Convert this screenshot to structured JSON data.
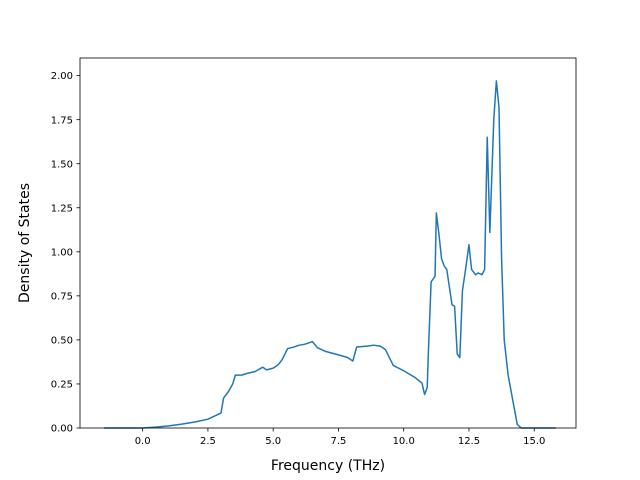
{
  "chart_data": {
    "type": "line",
    "title": "",
    "xlabel": "Frequency (THz)",
    "ylabel": "Density of States",
    "xlim": [
      -2.4,
      16.6
    ],
    "ylim": [
      0,
      2.1
    ],
    "xticks": [
      0.0,
      2.5,
      5.0,
      7.5,
      10.0,
      12.5,
      15.0
    ],
    "xtick_labels": [
      "0.0",
      "2.5",
      "5.0",
      "7.5",
      "10.0",
      "12.5",
      "15.0"
    ],
    "yticks": [
      0.0,
      0.25,
      0.5,
      0.75,
      1.0,
      1.25,
      1.5,
      1.75,
      2.0
    ],
    "ytick_labels": [
      "0.00",
      "0.25",
      "0.50",
      "0.75",
      "1.00",
      "1.25",
      "1.50",
      "1.75",
      "2.00"
    ],
    "grid": false,
    "line_color": "#1f77b4",
    "series": [
      {
        "x": [
          -1.45,
          -0.5,
          0.0,
          0.5,
          1.0,
          1.5,
          2.0,
          2.5,
          3.0,
          3.1,
          3.3,
          3.45,
          3.55,
          3.8,
          4.0,
          4.3,
          4.6,
          4.75,
          5.0,
          5.2,
          5.35,
          5.55,
          5.8,
          6.0,
          6.2,
          6.5,
          6.7,
          7.0,
          7.5,
          7.85,
          8.05,
          8.2,
          8.6,
          8.85,
          9.1,
          9.3,
          9.6,
          10.0,
          10.45,
          10.7,
          10.8,
          10.9,
          10.95,
          11.05,
          11.2,
          11.25,
          11.35,
          11.45,
          11.55,
          11.65,
          11.75,
          11.85,
          11.95,
          12.05,
          12.15,
          12.25,
          12.35,
          12.5,
          12.6,
          12.75,
          12.85,
          13.0,
          13.1,
          13.2,
          13.3,
          13.45,
          13.55,
          13.65,
          13.75,
          13.85,
          14.0,
          14.2,
          14.35,
          14.5,
          15.0,
          15.8
        ],
        "y": [
          0.0,
          0.0,
          0.0,
          0.005,
          0.012,
          0.022,
          0.034,
          0.05,
          0.085,
          0.17,
          0.21,
          0.25,
          0.3,
          0.3,
          0.31,
          0.32,
          0.345,
          0.33,
          0.34,
          0.36,
          0.39,
          0.45,
          0.46,
          0.47,
          0.475,
          0.49,
          0.455,
          0.435,
          0.415,
          0.4,
          0.38,
          0.46,
          0.465,
          0.47,
          0.465,
          0.445,
          0.355,
          0.325,
          0.285,
          0.255,
          0.19,
          0.23,
          0.45,
          0.83,
          0.86,
          1.22,
          1.1,
          0.96,
          0.92,
          0.9,
          0.8,
          0.7,
          0.69,
          0.42,
          0.4,
          0.78,
          0.88,
          1.04,
          0.9,
          0.87,
          0.88,
          0.87,
          0.9,
          1.65,
          1.11,
          1.75,
          1.97,
          1.82,
          0.96,
          0.5,
          0.3,
          0.14,
          0.02,
          0.0,
          0.0,
          0.0
        ]
      }
    ]
  }
}
